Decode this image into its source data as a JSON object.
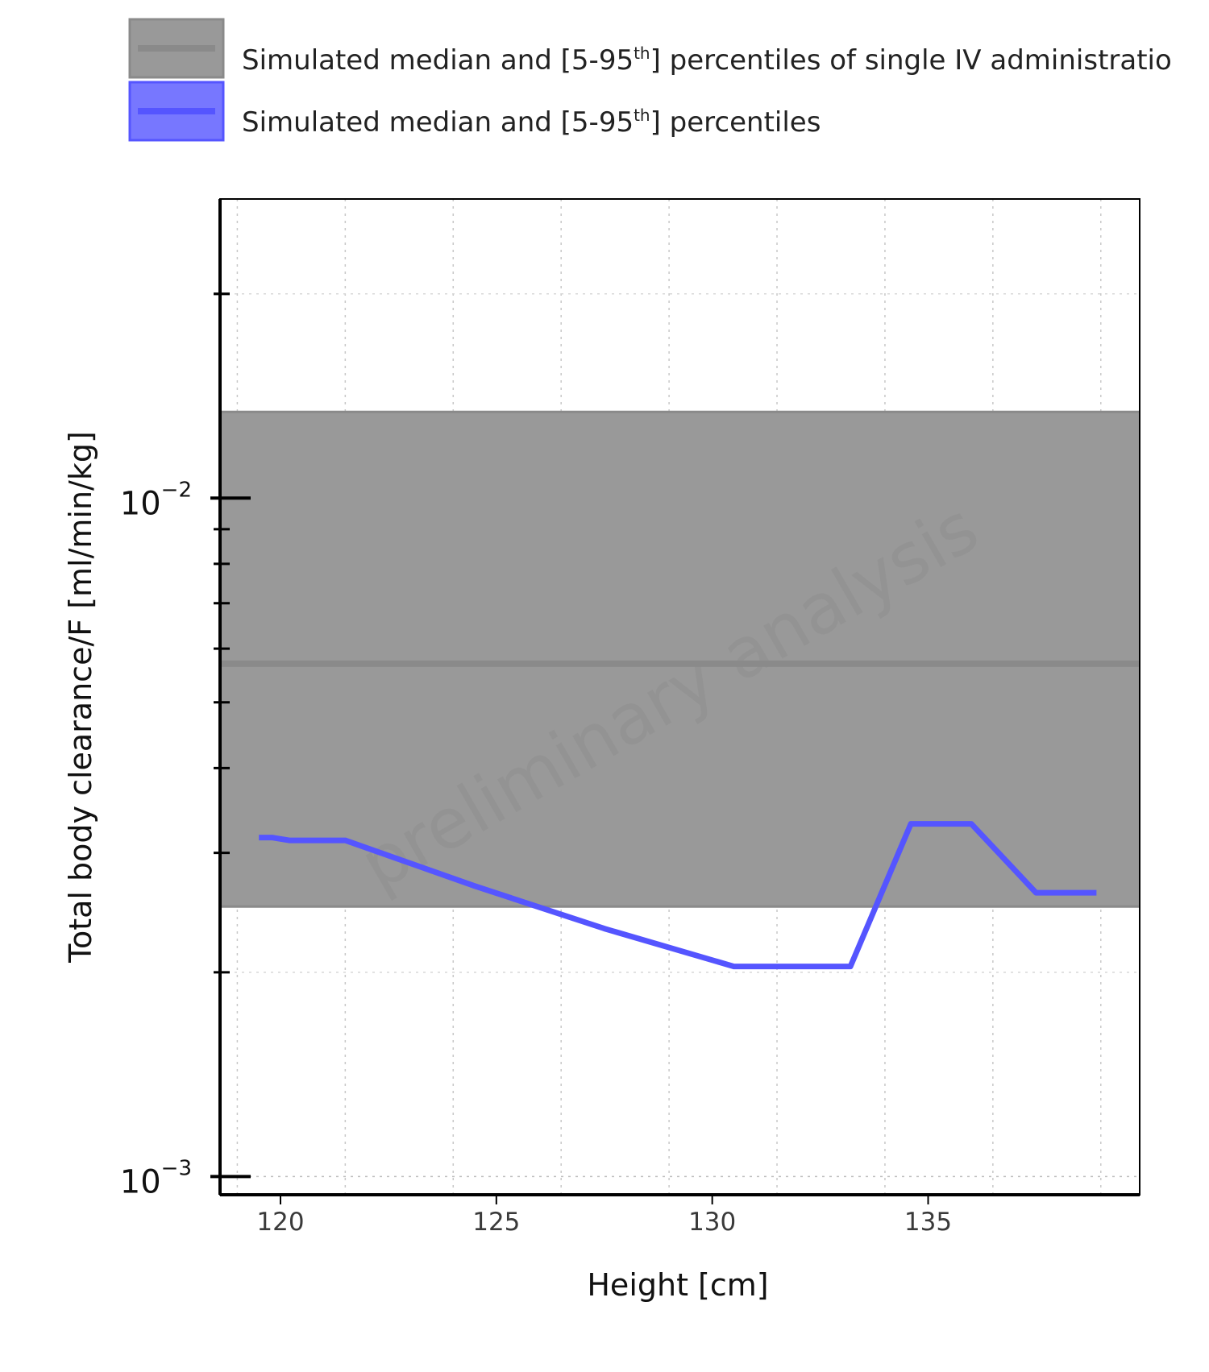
{
  "chart_data": {
    "type": "line",
    "xlabel": "Height [cm]",
    "ylabel": "Total body clearance/F [ml/min/kg]",
    "x_ticks": [
      120,
      125,
      130,
      135
    ],
    "y_scale": "log",
    "y_ticks": [
      {
        "value": 0.01,
        "base": "10",
        "exp": "−2"
      },
      {
        "value": 0.001,
        "base": "10",
        "exp": "−3"
      }
    ],
    "xlim": [
      118.6,
      139.9
    ],
    "ylim": [
      0.00094,
      0.0276
    ],
    "grid": true,
    "legend_position": "top",
    "watermark": "preliminary analysis",
    "legend": [
      {
        "text_before": "Simulated median and [5-95",
        "superscript": "th",
        "text_after": "] percentiles of single IV administratio",
        "color": "#8a8a8a",
        "fill": "#999999"
      },
      {
        "text_before": "Simulated median and [5-95",
        "superscript": "th",
        "text_after": "] percentiles",
        "color": "#5555ff",
        "fill": "#7777ff"
      }
    ],
    "series": [
      {
        "name": "Simulated median and [5-95th] percentiles of single IV administratio",
        "kind": "band",
        "color": "#8a8a8a",
        "fill": "#999999",
        "median": 0.0057,
        "lower": 0.0025,
        "upper": 0.0134
      },
      {
        "name": "Simulated median and [5-95th] percentiles",
        "kind": "line",
        "color": "#5555ff",
        "x": [
          119.5,
          119.8,
          120.2,
          121.5,
          124.5,
          127.5,
          130.5,
          133.2,
          134.6,
          136.0,
          137.5,
          138.9
        ],
        "y": [
          0.00316,
          0.00316,
          0.00313,
          0.00313,
          0.00268,
          0.00232,
          0.00204,
          0.00204,
          0.00331,
          0.00331,
          0.00262,
          0.00262
        ]
      }
    ]
  }
}
